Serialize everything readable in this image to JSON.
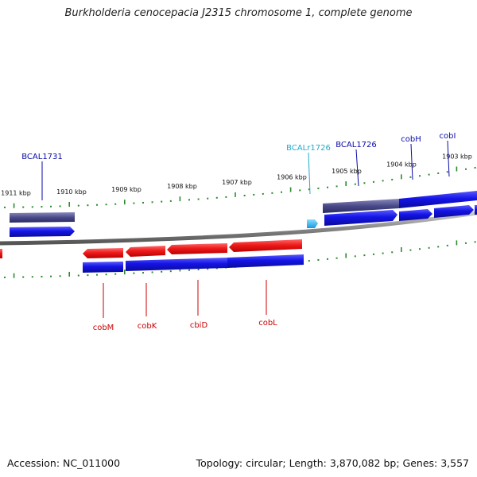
{
  "title": "Burkholderia cenocepacia J2315 chromosome 1, complete genome",
  "footer": {
    "accession": "Accession: NC_011000",
    "summary": "Topology: circular; Length: 3,870,082 bp; Genes: 3,557"
  },
  "kbp_labels": [
    "1911 kbp",
    "1910 kbp",
    "1909 kbp",
    "1908 kbp",
    "1907 kbp",
    "1906 kbp",
    "1905 kbp",
    "1904 kbp",
    "1903 kbp"
  ],
  "gene_labels": {
    "top": [
      "BCAL1731",
      "BCALr1726",
      "BCAL1726",
      "cobH",
      "cobI"
    ],
    "bottom": [
      "cobM",
      "cobK",
      "cbiD",
      "cobL"
    ]
  },
  "colors": {
    "forward_gene": "#1414e6",
    "reverse_gene": "#ee1a1a",
    "pseudo_track": "#4a4a88",
    "rna": "#33bbee",
    "backbone": "#888888",
    "ticks": "#2d8a2d",
    "label_blue": "#0a0aaa",
    "label_red": "#cc0000",
    "label_cyan": "#22aacc"
  }
}
